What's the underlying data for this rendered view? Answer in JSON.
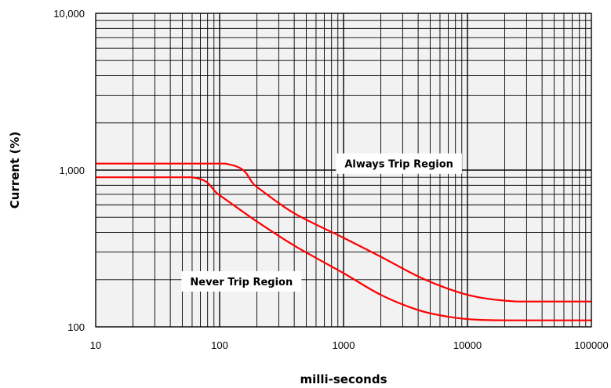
{
  "chart_data": {
    "type": "line",
    "xlabel": "milli-seconds",
    "ylabel": "Current (%)",
    "x_scale": "log",
    "y_scale": "log",
    "xlim": [
      10,
      100000
    ],
    "ylim": [
      100,
      10000
    ],
    "x_ticks": [
      "10",
      "100",
      "1000",
      "10000",
      "100000"
    ],
    "y_ticks": [
      "100",
      "1,000",
      "10,000"
    ],
    "grid": true,
    "background": "#f2f2f2",
    "series": [
      {
        "color": "#ff0000",
        "points": [
          [
            10,
            1100
          ],
          [
            110,
            1100
          ],
          [
            200,
            780
          ],
          [
            400,
            530
          ],
          [
            1000,
            370
          ],
          [
            2000,
            280
          ],
          [
            4000,
            210
          ],
          [
            7000,
            175
          ],
          [
            12000,
            155
          ],
          [
            25000,
            145
          ],
          [
            50000,
            145
          ],
          [
            100000,
            145
          ]
        ]
      },
      {
        "color": "#ff0000",
        "points": [
          [
            10,
            900
          ],
          [
            60,
            900
          ],
          [
            100,
            690
          ],
          [
            200,
            470
          ],
          [
            400,
            330
          ],
          [
            1000,
            220
          ],
          [
            2000,
            160
          ],
          [
            4000,
            128
          ],
          [
            7000,
            116
          ],
          [
            12000,
            111
          ],
          [
            25000,
            110
          ],
          [
            100000,
            110
          ]
        ]
      }
    ],
    "annotations": [
      {
        "text": "Always Trip Region",
        "x": 2800,
        "y": 1100
      },
      {
        "text": "Never Trip Region",
        "x": 150,
        "y": 195
      }
    ]
  }
}
